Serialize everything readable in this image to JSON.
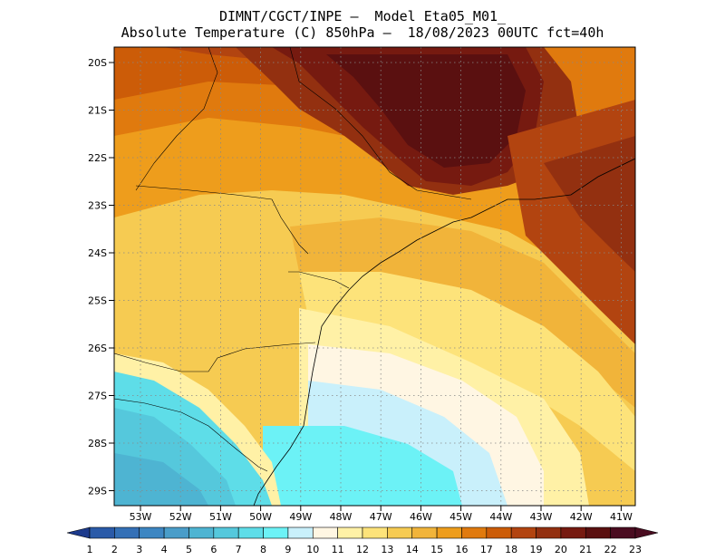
{
  "title_line1": "DIMNT/CGCT/INPE —  Model Eta05_M01_",
  "title_line2": "Absolute Temperature (C) 850hPa —  18/08/2023 00UTC fct=40h",
  "lat_labels": [
    "20S",
    "21S",
    "22S",
    "23S",
    "24S",
    "25S",
    "26S",
    "27S",
    "28S",
    "29S"
  ],
  "lon_labels": [
    "53W",
    "52W",
    "51W",
    "50W",
    "49W",
    "48W",
    "47W",
    "46W",
    "45W",
    "44W",
    "43W",
    "42W",
    "41W"
  ],
  "colorbar": {
    "labels": [
      "1",
      "2",
      "3",
      "4",
      "5",
      "6",
      "7",
      "8",
      "9",
      "10",
      "11",
      "12",
      "13",
      "14",
      "15",
      "16",
      "17",
      "18",
      "19",
      "20",
      "21",
      "22",
      "23"
    ],
    "colors": [
      "#1c3a8c",
      "#2a5aa8",
      "#3470b6",
      "#3d86c2",
      "#4a9dc9",
      "#4eb4d2",
      "#55c8dc",
      "#5edde8",
      "#6cf2f6",
      "#c9f0fb",
      "#fff6e3",
      "#fff1a6",
      "#fde37a",
      "#f6cb52",
      "#f1b43a",
      "#ee9d1c",
      "#e07a0e",
      "#cc5c08",
      "#b24410",
      "#933010",
      "#761a10",
      "#5a1010",
      "#4a0c20"
    ]
  }
}
